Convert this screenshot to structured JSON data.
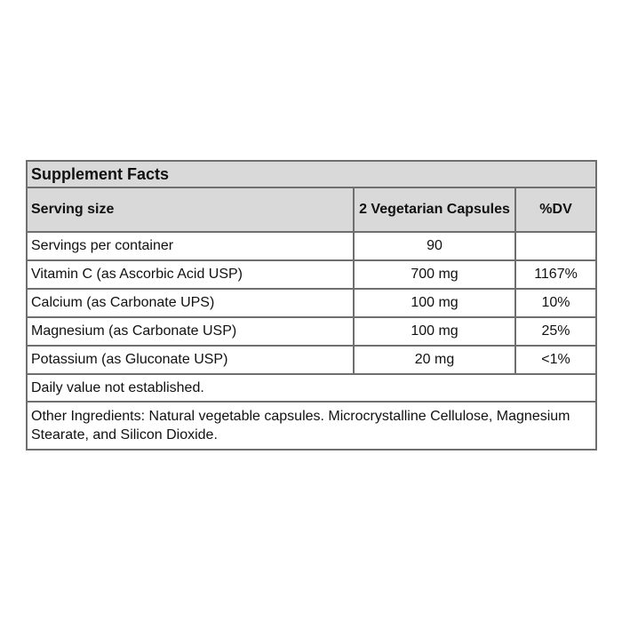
{
  "title": "Supplement Facts",
  "header": {
    "serving_label": "Serving size",
    "serving_value": "2 Vegetarian Capsules",
    "dv_label": "%DV"
  },
  "rows": [
    {
      "name": "Servings per container",
      "amount": "90",
      "dv": ""
    },
    {
      "name": "Vitamin C (as Ascorbic Acid USP)",
      "amount": "700 mg",
      "dv": "1167%"
    },
    {
      "name": "Calcium (as Carbonate UPS)",
      "amount": "100 mg",
      "dv": "10%"
    },
    {
      "name": "Magnesium (as Carbonate USP)",
      "amount": "100 mg",
      "dv": "25%"
    },
    {
      "name": "Potassium (as Gluconate USP)",
      "amount": "20 mg",
      "dv": "<1%"
    }
  ],
  "daily_value_note": "Daily value not established.",
  "other_ingredients": "Other Ingredients: Natural vegetable capsules. Microcrystalline Cellulose, Magnesium Stearate, and Silicon Dioxide."
}
